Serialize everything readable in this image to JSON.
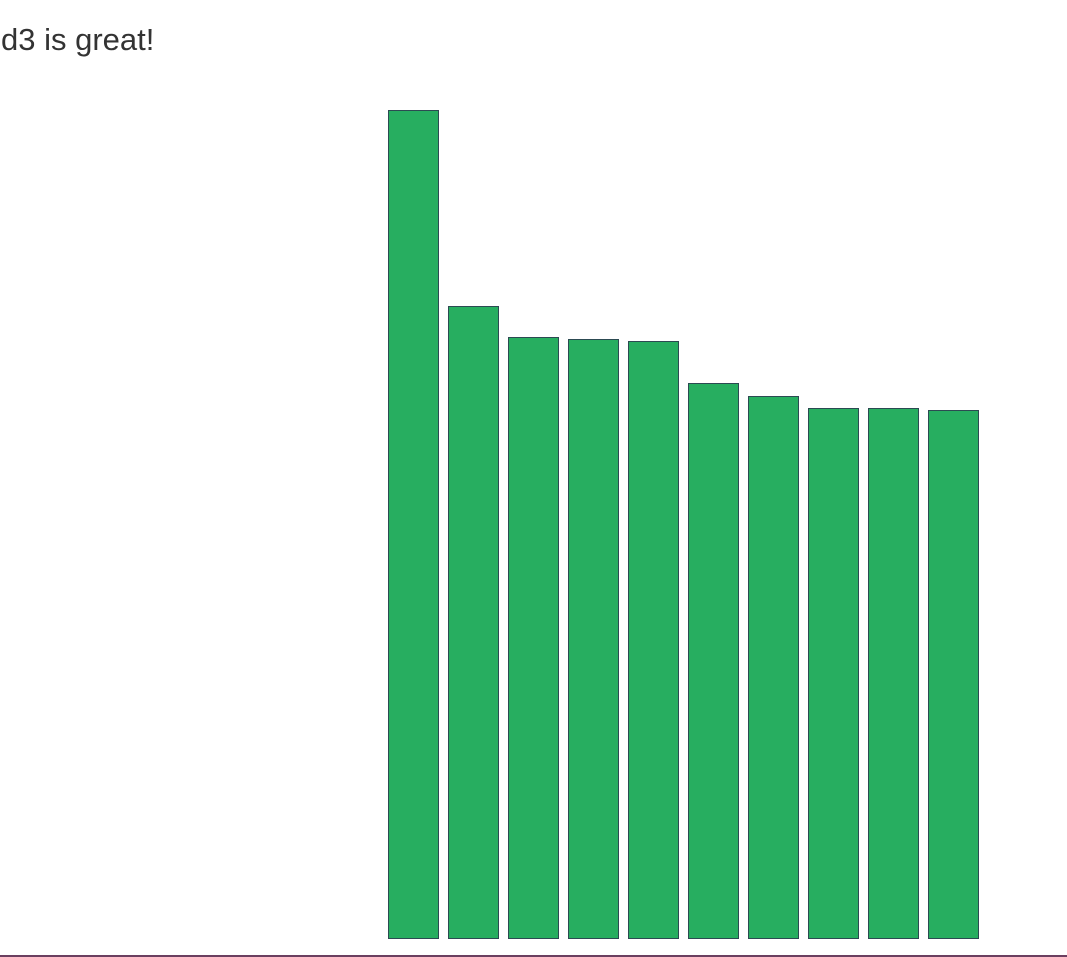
{
  "chart_data": {
    "type": "bar",
    "title": "d3 is great!",
    "categories": [
      null,
      null,
      null,
      null,
      null,
      null,
      null,
      null,
      null,
      null
    ],
    "values": [
      828,
      632,
      601,
      599,
      597,
      555,
      542,
      530,
      530,
      528
    ],
    "color": "#27ae60",
    "ylim": [
      0,
      828
    ]
  }
}
